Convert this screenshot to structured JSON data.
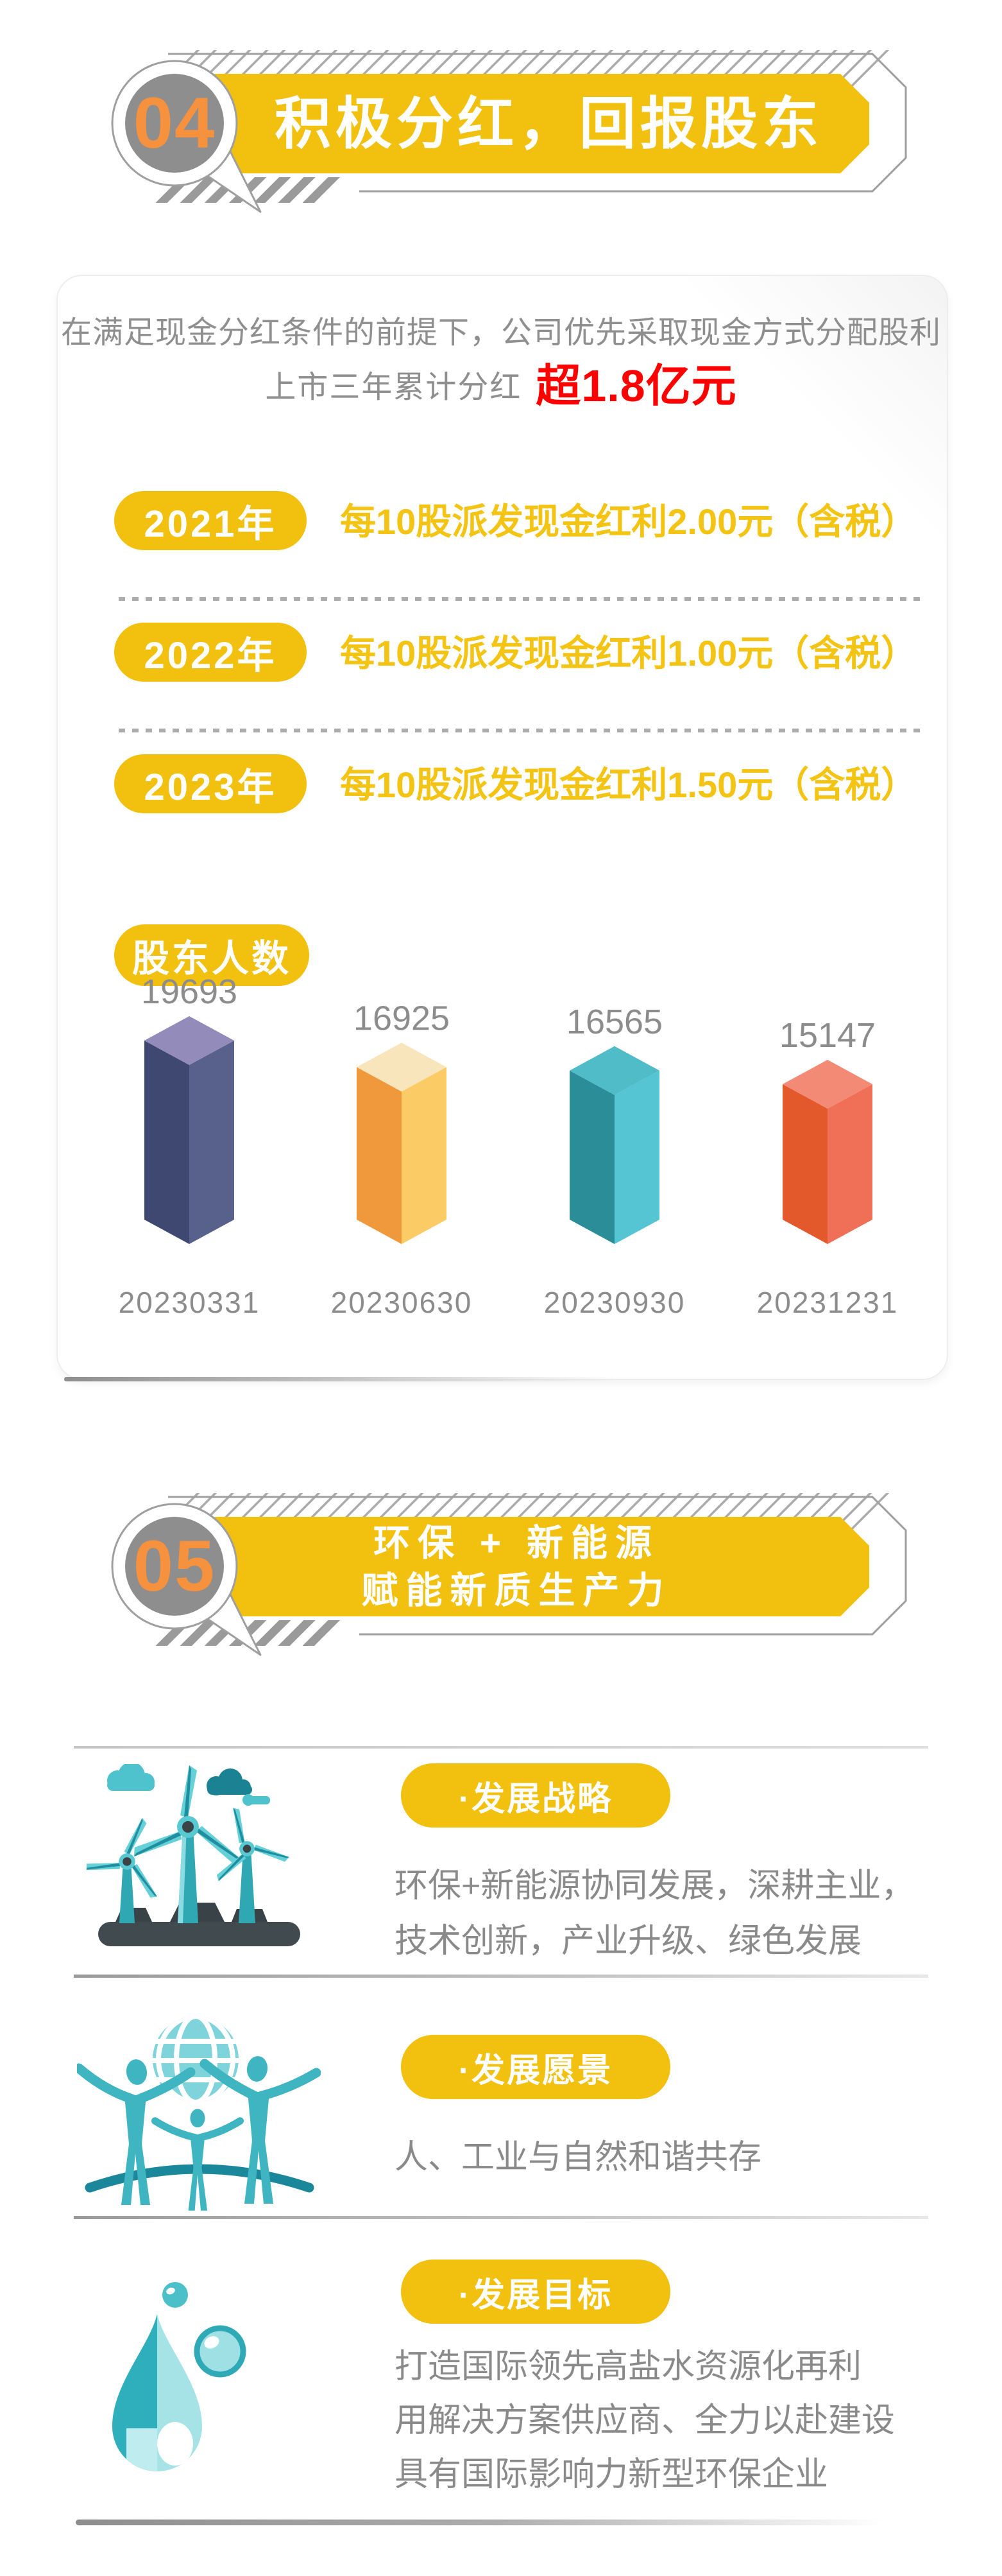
{
  "colors": {
    "yellow": "#F2C00F",
    "yellow_text": "#F4C414",
    "orange": "#F6913D",
    "red": "#FE0000",
    "gray_text": "#8E8E8E",
    "circle_gray": "#8E8E8E",
    "outline_gray": "#9F9F9F",
    "teal": "#3BB7C4"
  },
  "section04": {
    "number": "04",
    "title": "积极分红，回报股东",
    "intro_line1": "在满足现金分红条件的前提下，公司优先采取现金方式分配股利",
    "intro_prefix": "上市三年累计分红",
    "intro_highlight": "超1.8亿元",
    "dividends": [
      {
        "year": "2021年",
        "desc": "每10股派发现金红利2.00元（含税）"
      },
      {
        "year": "2022年",
        "desc": "每10股派发现金红利1.00元（含税）"
      },
      {
        "year": "2023年",
        "desc": "每10股派发现金红利1.50元（含税）"
      }
    ]
  },
  "chart_data": {
    "type": "bar",
    "title": "股东人数",
    "categories": [
      "20230331",
      "20230630",
      "20230930",
      "20231231"
    ],
    "values": [
      19693,
      16925,
      16565,
      15147
    ],
    "xlabel": "",
    "ylabel": "",
    "legend": false,
    "grid": false,
    "value_labels_shown": true,
    "label_color": "#8C8C8C",
    "bar_style": "isometric-3d-column",
    "bar_colors": [
      {
        "left": "#3F4870",
        "right": "#57618B",
        "top": "#938CBA"
      },
      {
        "left": "#F0993C",
        "right": "#FBCB65",
        "top": "#F8E5BC"
      },
      {
        "left": "#2A8D97",
        "right": "#55C4D3",
        "top": "#4FBCC8"
      },
      {
        "left": "#E4592B",
        "right": "#EF7057",
        "top": "#F28A76"
      }
    ]
  },
  "section05": {
    "number": "05",
    "title_line1": "环保 + 新能源",
    "title_line2": "赋能新质生产力",
    "features": [
      {
        "icon": "wind-turbine-icon",
        "badge": "·发展战略",
        "lines": [
          "环保+新能源协同发展，深耕主业，",
          "技术创新，产业升级、绿色发展"
        ]
      },
      {
        "icon": "people-globe-icon",
        "badge": "·发展愿景",
        "lines": [
          "人、工业与自然和谐共存"
        ]
      },
      {
        "icon": "water-drop-icon",
        "badge": "·发展目标",
        "lines": [
          "打造国际领先高盐水资源化再利",
          "用解决方案供应商、全力以赴建设",
          "具有国际影响力新型环保企业"
        ]
      }
    ]
  }
}
